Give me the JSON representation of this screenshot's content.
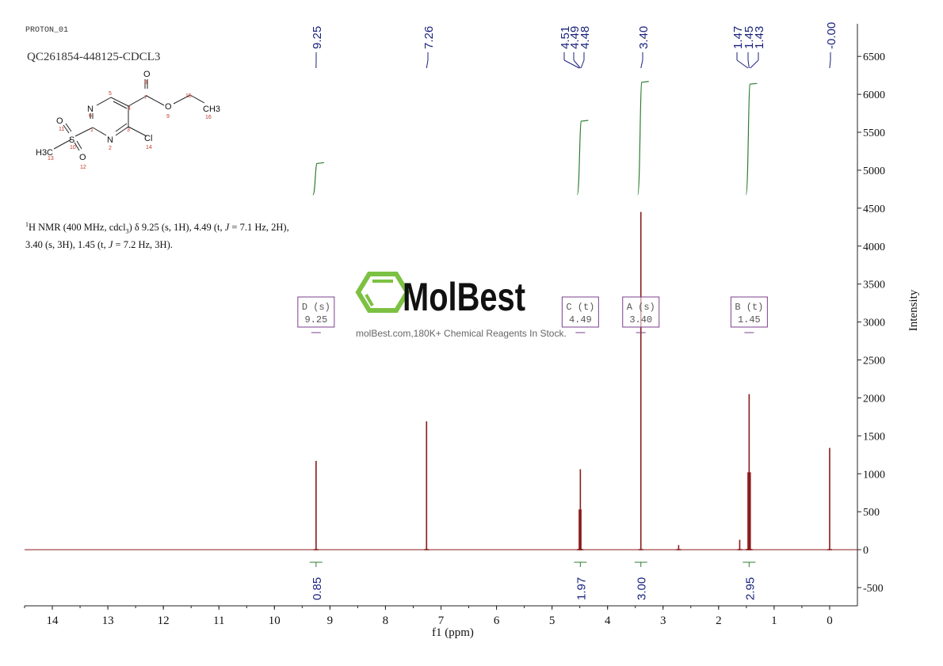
{
  "header": {
    "experiment": "PROTON_01",
    "sample": "QC261854-448125-CDCL3"
  },
  "description": {
    "sup": "1",
    "text": "H NMR (400 MHz, cdcl",
    "sub": "3",
    "rest_1": ") δ 9.25 (s, 1H), 4.49 (t, ",
    "J1": "J",
    "rest_2": " = 7.1 Hz, 2H),",
    "line2_1": "3.40 (s, 3H), 1.45 (t, ",
    "J2": "J",
    "line2_2": " = 7.2 Hz, 3H)."
  },
  "structure": {
    "atoms": [
      "N",
      "N",
      "O",
      "O",
      "S",
      "H3C",
      "Cl",
      "O",
      "O",
      "CH3"
    ],
    "numbers": [
      "1",
      "2",
      "3",
      "4",
      "5",
      "6",
      "7",
      "8",
      "9",
      "10",
      "11",
      "12",
      "13",
      "14",
      "15",
      "16"
    ]
  },
  "watermark": {
    "brand": "MolBest",
    "tagline": "molBest.com,180K+ Chemical Reagents In Stock."
  },
  "colors": {
    "spectrum": "#8b1a1a",
    "integral": "#2e7d32",
    "peak_label": "#1a237e",
    "multiplet_box": "#7b3f8c",
    "watermark_green": "#7cc142"
  },
  "chart_data": {
    "type": "line",
    "title": "",
    "xlabel": "f1 (ppm)",
    "ylabel": "Intensity",
    "xlim": [
      14.5,
      -0.5
    ],
    "ylim": [
      -740,
      6930
    ],
    "x_reversed": true,
    "grid": false,
    "x_ticks": [
      14,
      13,
      12,
      11,
      10,
      9,
      8,
      7,
      6,
      5,
      4,
      3,
      2,
      1,
      0
    ],
    "y_ticks": [
      -500,
      0,
      500,
      1000,
      1500,
      2000,
      2500,
      3000,
      3500,
      4000,
      4500,
      5000,
      5500,
      6000,
      6500
    ],
    "peaks": [
      {
        "ppm": 9.25,
        "intensity": 1170
      },
      {
        "ppm": 7.26,
        "intensity": 1690
      },
      {
        "ppm": 4.51,
        "intensity": 530
      },
      {
        "ppm": 4.49,
        "intensity": 1060
      },
      {
        "ppm": 4.48,
        "intensity": 530
      },
      {
        "ppm": 3.4,
        "intensity": 4450
      },
      {
        "ppm": 2.72,
        "intensity": 60
      },
      {
        "ppm": 1.62,
        "intensity": 130
      },
      {
        "ppm": 1.47,
        "intensity": 1020
      },
      {
        "ppm": 1.45,
        "intensity": 2050
      },
      {
        "ppm": 1.43,
        "intensity": 1020
      },
      {
        "ppm": 0.0,
        "intensity": 1340
      }
    ],
    "peak_labels": [
      "9.25",
      "7.26",
      "4.51",
      "4.49",
      "4.48",
      "3.40",
      "1.47",
      "1.45",
      "1.43",
      "-0.00"
    ],
    "multiplets": [
      {
        "id": "D",
        "mult": "(s)",
        "shift": "9.25"
      },
      {
        "id": "C",
        "mult": "(t)",
        "shift": "4.49"
      },
      {
        "id": "A",
        "mult": "(s)",
        "shift": "3.40"
      },
      {
        "id": "B",
        "mult": "(t)",
        "shift": "1.45"
      }
    ],
    "integrals": [
      {
        "ppm": 9.25,
        "value": "0.85",
        "num": 0.85
      },
      {
        "ppm": 4.49,
        "value": "1.97",
        "num": 1.97
      },
      {
        "ppm": 3.4,
        "value": "3.00",
        "num": 3.0
      },
      {
        "ppm": 1.45,
        "value": "2.95",
        "num": 2.95
      }
    ]
  }
}
